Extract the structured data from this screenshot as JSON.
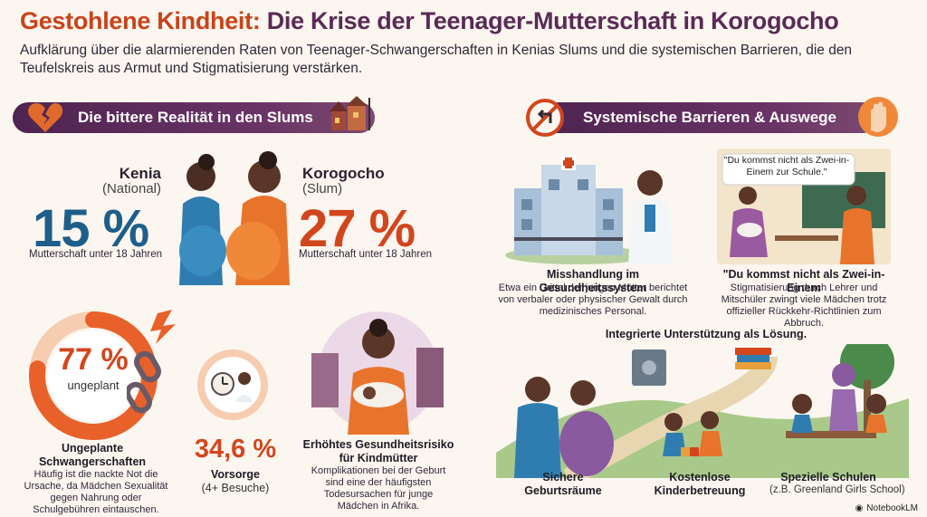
{
  "header": {
    "title_accent": "Gestohlene Kindheit:",
    "title_rest": " Die Krise der Teenager-Mutterschaft in Korogocho",
    "subtitle": "Aufklärung über die alarmierenden Raten von Teenager-Schwangerschaften in Kenias Slums und die systemischen Barrieren, die den Teufelskreis aus Armut und Stigmatisierung verstärken."
  },
  "left_banner": {
    "label": "Die bittere Realität in den Slums",
    "icon": "broken-heart-icon"
  },
  "right_banner": {
    "label": "Systemische Barrieren & Auswege",
    "icon": "no-return-icon",
    "end_icon": "raised-hand-icon"
  },
  "stats": {
    "kenia": {
      "name": "Kenia",
      "scope": "(National)",
      "value": "15 %",
      "caption": "Mutterschaft unter 18 Jahren",
      "color": "#1d5e8a"
    },
    "korogocho": {
      "name": "Korogocho",
      "scope": "(Slum)",
      "value": "27 %",
      "caption": "Mutterschaft unter 18 Jahren",
      "color": "#d2461d"
    },
    "unplanned": {
      "value": "77 %",
      "inner_label": "ungeplant",
      "fraction": 0.77,
      "title": "Ungeplante Schwangerschaften",
      "text": "Häufig ist die nackte Not die Ursache, da Mädchen Sexualität gegen Nahrung oder Schulgebühren eintauschen."
    },
    "care": {
      "value": "34,6 %",
      "title": "Vorsorge",
      "sub": "(4+ Besuche)"
    },
    "risk": {
      "title": "Erhöhtes Gesundheitsrisiko für Kindmütter",
      "text": "Komplikationen bei der Geburt sind eine der häufigsten Todesursachen für junge Mädchen in Afrika."
    }
  },
  "barriers": {
    "health": {
      "title": "Misshandlung im Gesundheitssystem",
      "text": "Etwa ein Drittel der jungen Mütter berichtet von verbaler oder physischer Gewalt durch medizinisches Personal."
    },
    "school": {
      "quote": "\"Du kommst nicht als Zwei-in-Einem zur Schule.\"",
      "title": "\"Du kommst nicht als Zwei-in-Einem",
      "text": "Stigmatisierung durch Lehrer und Mitschüler zwingt viele Mädchen trotz offizieller Rückkehr-Richtlinien zum Abbruch."
    }
  },
  "solutions": {
    "heading": "Integrierte Unterstützung als Lösung.",
    "items": [
      {
        "label": "Sichere Geburtsräume"
      },
      {
        "label": "Kostenlose Kinderbetreuung"
      },
      {
        "label": "Spezielle Schulen",
        "sub": "(z.B. Greenland Girls School)"
      }
    ]
  },
  "footer": {
    "brand": "NotebookLM"
  },
  "colors": {
    "accent": "#c9431a",
    "purple": "#5a2a55",
    "blue": "#1d5e8a",
    "orange": "#d2461d"
  }
}
